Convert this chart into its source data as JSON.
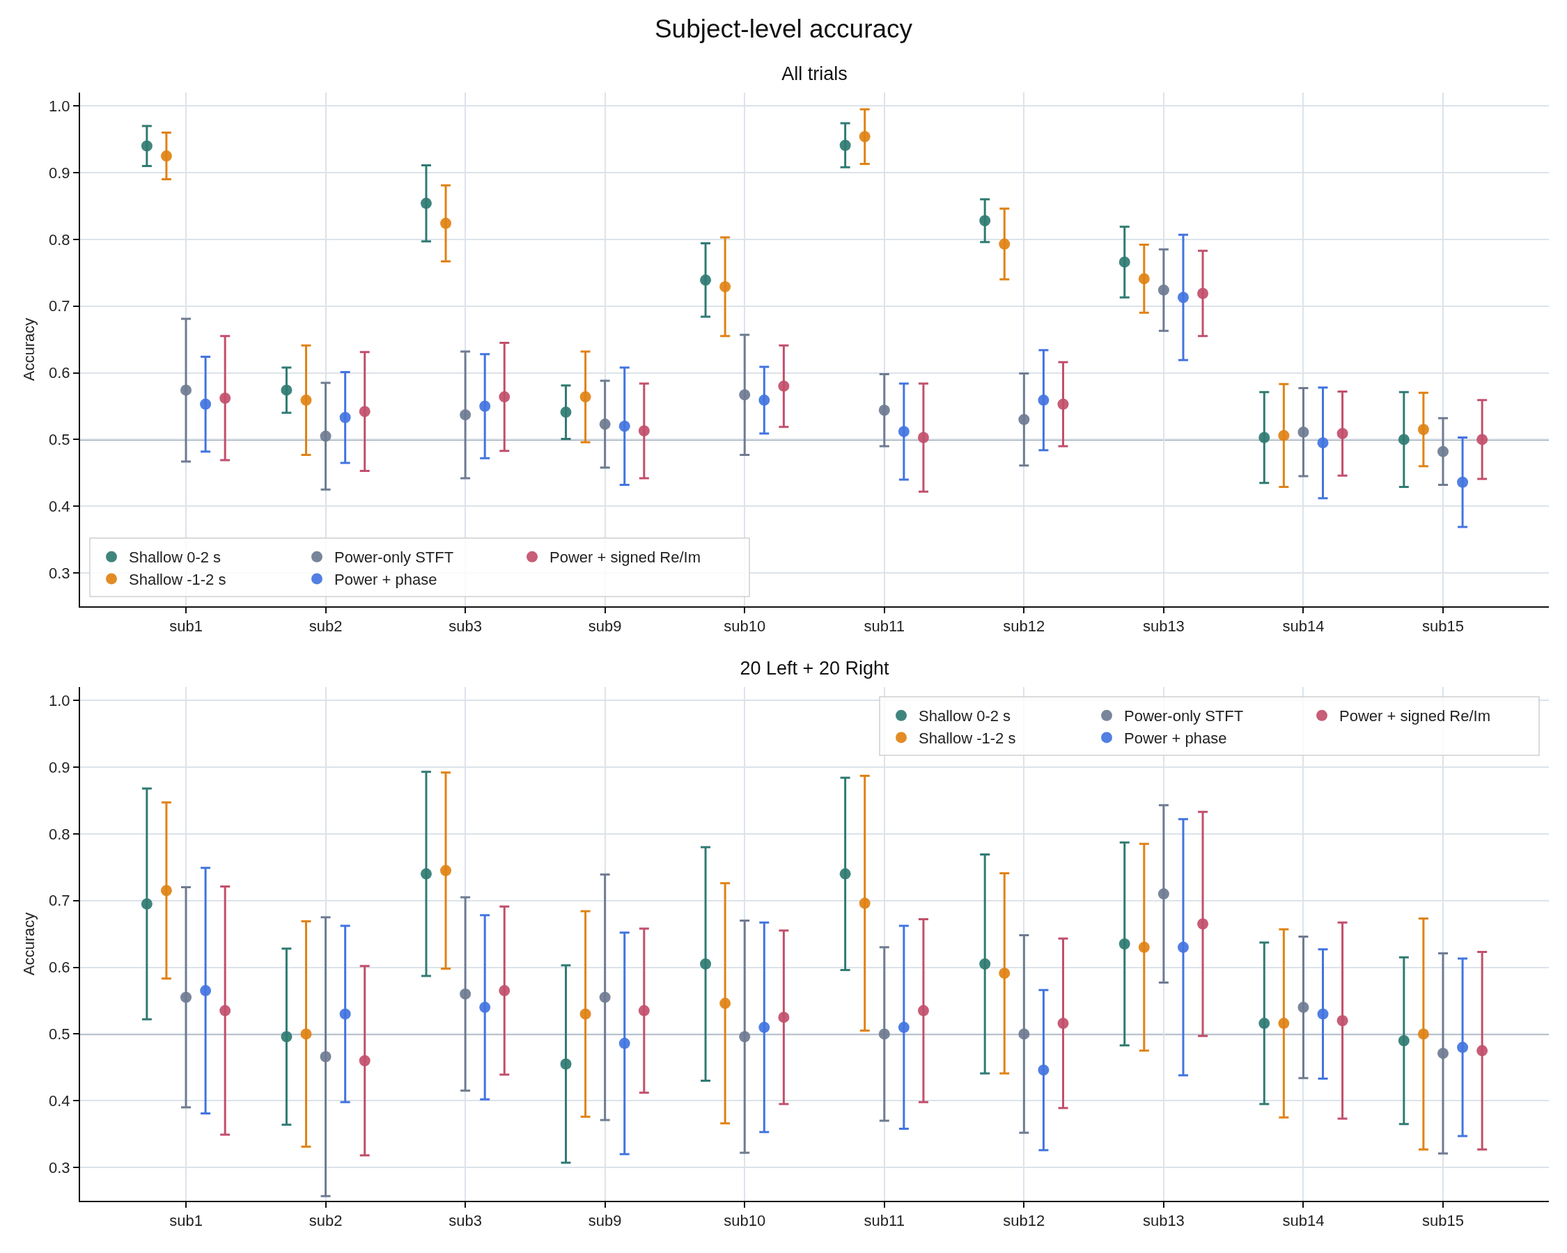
{
  "chart_data": [
    {
      "type": "scatter",
      "title": "Subject-level accuracy",
      "subtitle": "All trials",
      "ylabel": "Accuracy",
      "categories": [
        "sub1",
        "sub2",
        "sub3",
        "sub9",
        "sub10",
        "sub11",
        "sub12",
        "sub13",
        "sub14",
        "sub15"
      ],
      "series": [
        {
          "name": "Shallow 0-2 s",
          "color": "#2f7b72",
          "values": [
            0.94,
            0.574,
            0.854,
            0.541,
            0.739,
            0.941,
            0.828,
            0.766,
            0.503,
            0.5
          ],
          "errors": [
            0.03,
            0.034,
            0.057,
            0.04,
            0.055,
            0.033,
            0.032,
            0.053,
            0.068,
            0.071
          ]
        },
        {
          "name": "Shallow -1-2 s",
          "color": "#e08214",
          "values": [
            0.925,
            0.559,
            0.824,
            0.564,
            0.729,
            0.954,
            0.793,
            0.741,
            0.506,
            0.515
          ],
          "errors": [
            0.035,
            0.082,
            0.057,
            0.068,
            0.074,
            0.041,
            0.053,
            0.051,
            0.077,
            0.055
          ]
        },
        {
          "name": "Power-only STFT",
          "color": "#6e7b91",
          "values": [
            0.574,
            0.505,
            0.537,
            0.523,
            0.567,
            0.544,
            0.53,
            0.724,
            0.511,
            0.482
          ],
          "errors": [
            0.107,
            0.08,
            0.095,
            0.065,
            0.09,
            0.054,
            0.069,
            0.061,
            0.066,
            0.05
          ]
        },
        {
          "name": "Power + phase",
          "color": "#4274e0",
          "values": [
            0.553,
            0.533,
            0.55,
            0.52,
            0.559,
            0.512,
            0.559,
            0.713,
            0.495,
            0.436
          ],
          "errors": [
            0.071,
            0.068,
            0.078,
            0.088,
            0.05,
            0.072,
            0.075,
            0.094,
            0.083,
            0.067
          ]
        },
        {
          "name": "Power + signed Re/Im",
          "color": "#c24f6b",
          "values": [
            0.562,
            0.542,
            0.564,
            0.513,
            0.58,
            0.503,
            0.553,
            0.719,
            0.509,
            0.5
          ],
          "errors": [
            0.093,
            0.089,
            0.081,
            0.071,
            0.061,
            0.081,
            0.063,
            0.064,
            0.063,
            0.059
          ]
        }
      ],
      "ylim": [
        0.25,
        1.02
      ],
      "yticks": [
        0.3,
        0.4,
        0.5,
        0.6,
        0.7,
        0.8,
        0.9,
        {
          "value": 1,
          "label": "1.0"
        }
      ],
      "ref_lines": [
        {
          "axis": "y",
          "value": 0.5,
          "color": "#778899"
        }
      ],
      "grid": true,
      "legend": "bottom left",
      "marker": "circle"
    },
    {
      "type": "scatter",
      "title": "20 Left + 20 Right",
      "ylabel": "Accuracy",
      "categories": [
        "sub1",
        "sub2",
        "sub3",
        "sub9",
        "sub10",
        "sub11",
        "sub12",
        "sub13",
        "sub14",
        "sub15"
      ],
      "series": [
        {
          "name": "Shallow 0-2 s",
          "color": "#2f7b72",
          "values": [
            0.695,
            0.496,
            0.74,
            0.455,
            0.605,
            0.74,
            0.605,
            0.635,
            0.516,
            0.49
          ],
          "errors": [
            0.173,
            0.132,
            0.153,
            0.148,
            0.175,
            0.144,
            0.164,
            0.152,
            0.121,
            0.125
          ]
        },
        {
          "name": "Shallow -1-2 s",
          "color": "#e08214",
          "values": [
            0.715,
            0.5,
            0.745,
            0.53,
            0.546,
            0.696,
            0.591,
            0.63,
            0.516,
            0.5
          ],
          "errors": [
            0.132,
            0.169,
            0.147,
            0.154,
            0.18,
            0.191,
            0.15,
            0.155,
            0.141,
            0.173
          ]
        },
        {
          "name": "Power-only STFT",
          "color": "#6e7b91",
          "values": [
            0.555,
            0.466,
            0.56,
            0.555,
            0.496,
            0.5,
            0.5,
            0.71,
            0.54,
            0.471
          ],
          "errors": [
            0.165,
            0.209,
            0.145,
            0.184,
            0.174,
            0.13,
            0.148,
            0.133,
            0.106,
            0.15
          ]
        },
        {
          "name": "Power + phase",
          "color": "#4274e0",
          "values": [
            0.565,
            0.53,
            0.54,
            0.486,
            0.51,
            0.51,
            0.446,
            0.63,
            0.53,
            0.48
          ],
          "errors": [
            0.184,
            0.132,
            0.138,
            0.166,
            0.157,
            0.152,
            0.12,
            0.192,
            0.097,
            0.133
          ]
        },
        {
          "name": "Power + signed Re/Im",
          "color": "#c24f6b",
          "values": [
            0.535,
            0.46,
            0.565,
            0.535,
            0.525,
            0.535,
            0.516,
            0.665,
            0.52,
            0.475
          ],
          "errors": [
            0.186,
            0.142,
            0.126,
            0.123,
            0.13,
            0.137,
            0.127,
            0.168,
            0.147,
            0.148
          ]
        }
      ],
      "ylim": [
        0.25,
        1.02
      ],
      "yticks": [
        0.3,
        0.4,
        0.5,
        0.6,
        0.7,
        0.8,
        0.9,
        {
          "value": 1,
          "label": "1.0"
        }
      ],
      "ref_lines": [
        {
          "axis": "y",
          "value": 0.5,
          "color": "#778899"
        }
      ],
      "grid": true,
      "legend": "top right",
      "marker": "circle"
    }
  ]
}
